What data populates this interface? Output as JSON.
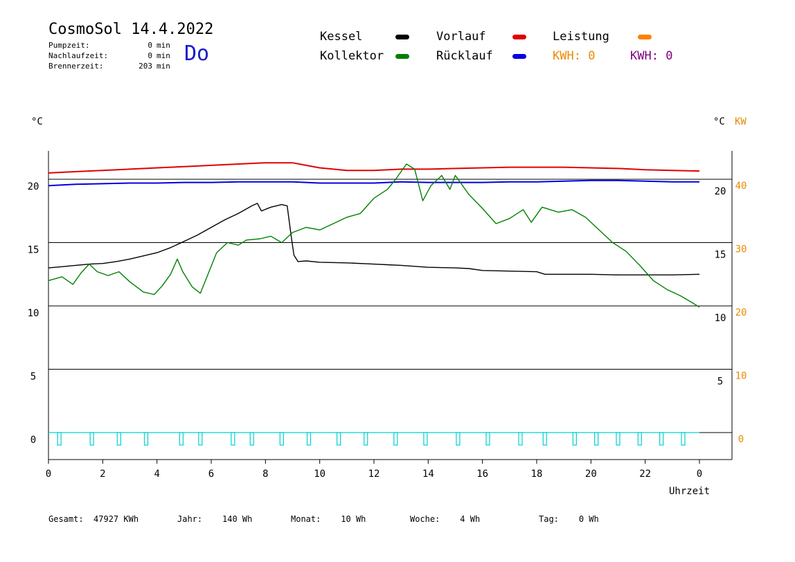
{
  "header": {
    "title": "CosmoSol 14.4.2022",
    "day": "Do",
    "stats": [
      {
        "label": "Pumpzeit:",
        "value": "0",
        "unit": "min"
      },
      {
        "label": "Nachlaufzeit:",
        "value": "0",
        "unit": "min"
      },
      {
        "label": "Brennerzeit:",
        "value": "203",
        "unit": "min"
      }
    ]
  },
  "legend": {
    "kessel": {
      "label": "Kessel",
      "color": "#000000"
    },
    "kollektor": {
      "label": "Kollektor",
      "color": "#008000"
    },
    "vorlauf": {
      "label": "Vorlauf",
      "color": "#e00000"
    },
    "ruecklauf": {
      "label": "Rücklauf",
      "color": "#0000e0"
    },
    "leistung": {
      "label": "Leistung",
      "color": "#ff8000"
    },
    "kwh1": {
      "label": "KWH:",
      "value": "0",
      "color": "#e88a00"
    },
    "kwh2": {
      "label": "KWH:",
      "value": "0",
      "color": "#800080"
    }
  },
  "axis_units": {
    "left": "°C",
    "right_temp": "°C",
    "right_power": "KW",
    "x": "Uhrzeit"
  },
  "footer": [
    {
      "label": "Gesamt:",
      "value": "47927 KWh"
    },
    {
      "label": "Jahr:",
      "value": "140 Wh"
    },
    {
      "label": "Monat:",
      "value": "10 Wh"
    },
    {
      "label": "Woche:",
      "value": "4 Wh"
    },
    {
      "label": "Tag:",
      "value": "0 Wh"
    }
  ],
  "chart_data": {
    "type": "line",
    "title": "CosmoSol 14.4.2022",
    "xlabel": "Uhrzeit",
    "ylabel": "°C",
    "xlim": [
      0,
      24
    ],
    "ylim": [
      -2,
      22.5
    ],
    "grid": true,
    "x_ticks": [
      "0",
      "2",
      "4",
      "6",
      "8",
      "10",
      "12",
      "14",
      "16",
      "18",
      "20",
      "22",
      "0"
    ],
    "y_ticks_left": [
      "0",
      "5",
      "10",
      "15",
      "20"
    ],
    "y_ticks_right_temp": [
      "5",
      "10",
      "15",
      "20"
    ],
    "y_ticks_right_power": [
      "0",
      "10",
      "20",
      "30",
      "40"
    ],
    "series": [
      {
        "name": "Vorlauf",
        "color": "#e00000",
        "points": [
          [
            0,
            20.5
          ],
          [
            1,
            20.6
          ],
          [
            2,
            20.7
          ],
          [
            3,
            20.8
          ],
          [
            4,
            20.9
          ],
          [
            5,
            21.0
          ],
          [
            6,
            21.1
          ],
          [
            7,
            21.2
          ],
          [
            8,
            21.3
          ],
          [
            9,
            21.3
          ],
          [
            9.5,
            21.1
          ],
          [
            10,
            20.9
          ],
          [
            10.5,
            20.8
          ],
          [
            11,
            20.7
          ],
          [
            12,
            20.7
          ],
          [
            13,
            20.8
          ],
          [
            14,
            20.8
          ],
          [
            15,
            20.85
          ],
          [
            16,
            20.9
          ],
          [
            17,
            20.95
          ],
          [
            18,
            20.95
          ],
          [
            19,
            20.95
          ],
          [
            20,
            20.9
          ],
          [
            21,
            20.85
          ],
          [
            22,
            20.75
          ],
          [
            23,
            20.7
          ],
          [
            24,
            20.65
          ]
        ]
      },
      {
        "name": "Rücklauf",
        "color": "#0000e0",
        "points": [
          [
            0,
            19.5
          ],
          [
            1,
            19.6
          ],
          [
            2,
            19.65
          ],
          [
            3,
            19.7
          ],
          [
            4,
            19.7
          ],
          [
            5,
            19.75
          ],
          [
            6,
            19.75
          ],
          [
            7,
            19.8
          ],
          [
            8,
            19.8
          ],
          [
            9,
            19.8
          ],
          [
            10,
            19.7
          ],
          [
            11,
            19.7
          ],
          [
            12,
            19.7
          ],
          [
            13,
            19.8
          ],
          [
            14,
            19.75
          ],
          [
            15,
            19.75
          ],
          [
            16,
            19.75
          ],
          [
            17,
            19.8
          ],
          [
            18,
            19.8
          ],
          [
            19,
            19.85
          ],
          [
            20,
            19.9
          ],
          [
            21,
            19.9
          ],
          [
            22,
            19.85
          ],
          [
            23,
            19.8
          ],
          [
            24,
            19.8
          ]
        ]
      },
      {
        "name": "Kessel",
        "color": "#000000",
        "points": [
          [
            0,
            13.0
          ],
          [
            0.5,
            13.1
          ],
          [
            1,
            13.2
          ],
          [
            1.5,
            13.3
          ],
          [
            2,
            13.35
          ],
          [
            2.5,
            13.5
          ],
          [
            3,
            13.7
          ],
          [
            3.5,
            13.95
          ],
          [
            4,
            14.2
          ],
          [
            4.5,
            14.6
          ],
          [
            5,
            15.1
          ],
          [
            5.5,
            15.6
          ],
          [
            6,
            16.2
          ],
          [
            6.5,
            16.8
          ],
          [
            7,
            17.3
          ],
          [
            7.5,
            17.9
          ],
          [
            7.7,
            18.1
          ],
          [
            7.85,
            17.5
          ],
          [
            8.2,
            17.8
          ],
          [
            8.6,
            18.0
          ],
          [
            8.8,
            17.9
          ],
          [
            8.95,
            15.5
          ],
          [
            9.05,
            14.0
          ],
          [
            9.2,
            13.5
          ],
          [
            9.5,
            13.55
          ],
          [
            10,
            13.45
          ],
          [
            11,
            13.4
          ],
          [
            12,
            13.3
          ],
          [
            12.5,
            13.25
          ],
          [
            13,
            13.2
          ],
          [
            14,
            13.05
          ],
          [
            15,
            13.0
          ],
          [
            15.5,
            12.95
          ],
          [
            16,
            12.8
          ],
          [
            17,
            12.75
          ],
          [
            18,
            12.7
          ],
          [
            18.3,
            12.5
          ],
          [
            19,
            12.5
          ],
          [
            20,
            12.5
          ],
          [
            21,
            12.45
          ],
          [
            22,
            12.45
          ],
          [
            23,
            12.45
          ],
          [
            24,
            12.5
          ]
        ]
      },
      {
        "name": "Kollektor",
        "color": "#008000",
        "points": [
          [
            0,
            12.0
          ],
          [
            0.5,
            12.3
          ],
          [
            0.9,
            11.7
          ],
          [
            1.2,
            12.6
          ],
          [
            1.5,
            13.3
          ],
          [
            1.8,
            12.7
          ],
          [
            2.2,
            12.4
          ],
          [
            2.6,
            12.7
          ],
          [
            3,
            11.9
          ],
          [
            3.5,
            11.1
          ],
          [
            3.9,
            10.9
          ],
          [
            4.2,
            11.6
          ],
          [
            4.5,
            12.5
          ],
          [
            4.75,
            13.7
          ],
          [
            4.95,
            12.7
          ],
          [
            5.3,
            11.5
          ],
          [
            5.6,
            11.0
          ],
          [
            5.9,
            12.6
          ],
          [
            6.2,
            14.2
          ],
          [
            6.6,
            15.0
          ],
          [
            7.0,
            14.8
          ],
          [
            7.3,
            15.2
          ],
          [
            7.8,
            15.3
          ],
          [
            8.2,
            15.5
          ],
          [
            8.6,
            15.0
          ],
          [
            9.0,
            15.8
          ],
          [
            9.5,
            16.2
          ],
          [
            10,
            16.0
          ],
          [
            10.5,
            16.5
          ],
          [
            11,
            17.0
          ],
          [
            11.5,
            17.3
          ],
          [
            12,
            18.5
          ],
          [
            12.5,
            19.2
          ],
          [
            12.8,
            20.0
          ],
          [
            13.2,
            21.2
          ],
          [
            13.5,
            20.8
          ],
          [
            13.8,
            18.3
          ],
          [
            14.1,
            19.5
          ],
          [
            14.5,
            20.3
          ],
          [
            14.8,
            19.2
          ],
          [
            15,
            20.3
          ],
          [
            15.5,
            18.8
          ],
          [
            16,
            17.7
          ],
          [
            16.5,
            16.5
          ],
          [
            17,
            16.9
          ],
          [
            17.5,
            17.6
          ],
          [
            17.8,
            16.6
          ],
          [
            18.2,
            17.8
          ],
          [
            18.8,
            17.4
          ],
          [
            19.3,
            17.6
          ],
          [
            19.8,
            17.0
          ],
          [
            20.3,
            16.0
          ],
          [
            20.8,
            15.0
          ],
          [
            21.3,
            14.3
          ],
          [
            21.8,
            13.2
          ],
          [
            22.3,
            12.0
          ],
          [
            22.8,
            11.3
          ],
          [
            23.3,
            10.8
          ],
          [
            23.7,
            10.3
          ],
          [
            24,
            9.9
          ]
        ]
      }
    ],
    "pump_series": {
      "name": "Pumpe",
      "color": "#00d0d0",
      "pulses": [
        0.4,
        1.6,
        2.6,
        3.6,
        4.9,
        5.6,
        6.8,
        7.5,
        8.6,
        9.6,
        10.7,
        11.7,
        12.8,
        13.9,
        15.1,
        16.2,
        17.4,
        18.3,
        19.4,
        20.2,
        21.0,
        21.8,
        22.6,
        23.4
      ]
    }
  }
}
